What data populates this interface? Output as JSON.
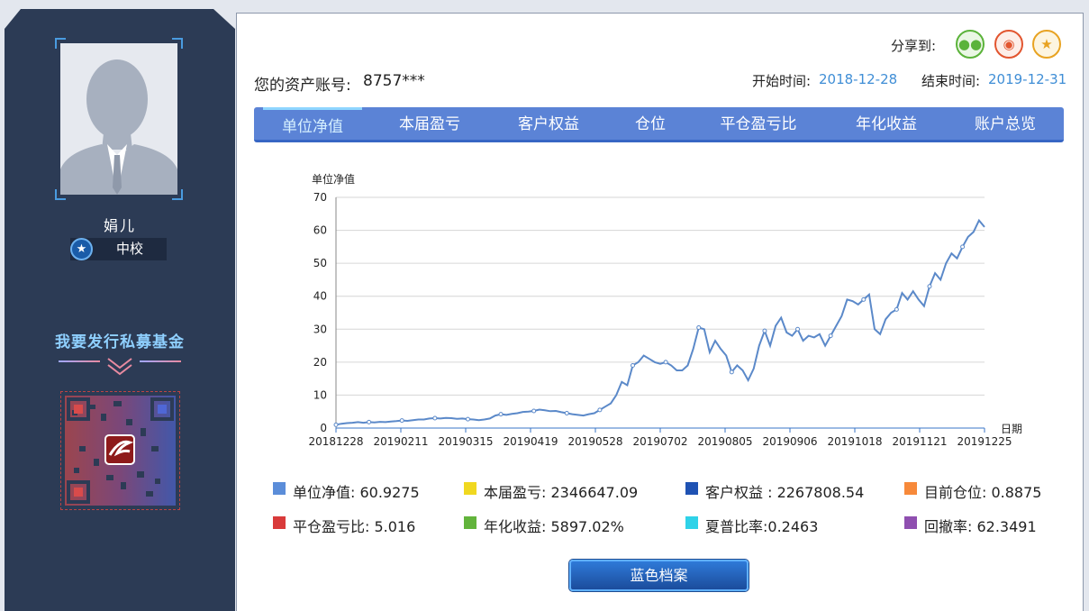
{
  "profile": {
    "name": "娟儿",
    "rank": "中校",
    "rank_icon": "star-icon"
  },
  "fund": {
    "title": "我要发行私募基金"
  },
  "account": {
    "label": "您的资产账号:",
    "value": "8757***"
  },
  "share": {
    "label": "分享到:",
    "buttons": [
      {
        "name": "wechat-icon",
        "color": "#5bb33a"
      },
      {
        "name": "weibo-icon",
        "color": "#e2552f"
      },
      {
        "name": "favorite-star-icon",
        "color": "#e8a322"
      }
    ]
  },
  "period": {
    "start_label": "开始时间:",
    "start_value": "2018-12-28",
    "end_label": "结束时间:",
    "end_value": "2019-12-31"
  },
  "tabs": [
    {
      "label": "单位净值",
      "active": true
    },
    {
      "label": "本届盈亏"
    },
    {
      "label": "客户权益"
    },
    {
      "label": "仓位"
    },
    {
      "label": "平仓盈亏比"
    },
    {
      "label": "年化收益"
    },
    {
      "label": "账户总览"
    }
  ],
  "chart_data": {
    "type": "line",
    "title": "",
    "ylabel": "单位净值",
    "xlabel": "日期",
    "ylim": [
      0,
      70
    ],
    "yticks": [
      0,
      10,
      20,
      30,
      40,
      50,
      60,
      70
    ],
    "xticks": [
      "20181228",
      "20190211",
      "20190315",
      "20190419",
      "20190528",
      "20190702",
      "20190805",
      "20190906",
      "20191018",
      "20191121",
      "20191225"
    ],
    "grid": true,
    "series": [
      {
        "color": "#5b89c9",
        "points": [
          [
            0,
            1.0
          ],
          [
            3,
            1.3
          ],
          [
            6,
            1.5
          ],
          [
            9,
            1.6
          ],
          [
            12,
            1.8
          ],
          [
            15,
            1.6
          ],
          [
            18,
            1.8
          ],
          [
            21,
            1.7
          ],
          [
            24,
            1.9
          ],
          [
            27,
            1.8
          ],
          [
            30,
            2.0
          ],
          [
            33,
            2.1
          ],
          [
            36,
            2.3
          ],
          [
            39,
            2.2
          ],
          [
            42,
            2.4
          ],
          [
            45,
            2.6
          ],
          [
            48,
            2.6
          ],
          [
            51,
            2.9
          ],
          [
            54,
            3.0
          ],
          [
            57,
            2.9
          ],
          [
            60,
            3.1
          ],
          [
            63,
            3.0
          ],
          [
            66,
            2.8
          ],
          [
            69,
            2.9
          ],
          [
            72,
            2.7
          ],
          [
            75,
            2.6
          ],
          [
            78,
            2.4
          ],
          [
            81,
            2.6
          ],
          [
            84,
            2.9
          ],
          [
            87,
            3.8
          ],
          [
            90,
            4.2
          ],
          [
            93,
            4.0
          ],
          [
            96,
            4.3
          ],
          [
            99,
            4.5
          ],
          [
            102,
            4.9
          ],
          [
            105,
            5.0
          ],
          [
            108,
            5.2
          ],
          [
            111,
            5.6
          ],
          [
            114,
            5.4
          ],
          [
            117,
            5.1
          ],
          [
            120,
            5.2
          ],
          [
            123,
            4.8
          ],
          [
            126,
            4.5
          ],
          [
            129,
            4.2
          ],
          [
            132,
            4.0
          ],
          [
            135,
            3.8
          ],
          [
            138,
            4.2
          ],
          [
            141,
            4.5
          ],
          [
            144,
            5.5
          ],
          [
            147,
            6.5
          ],
          [
            150,
            7.5
          ],
          [
            153,
            10
          ],
          [
            156,
            14
          ],
          [
            159,
            13
          ],
          [
            162,
            19
          ],
          [
            165,
            20
          ],
          [
            168,
            22
          ],
          [
            171,
            21
          ],
          [
            174,
            20
          ],
          [
            177,
            19.5
          ],
          [
            180,
            20
          ],
          [
            183,
            19
          ],
          [
            186,
            17.5
          ],
          [
            189,
            17.5
          ],
          [
            192,
            19
          ],
          [
            195,
            24
          ],
          [
            198,
            30.5
          ],
          [
            201,
            30
          ],
          [
            204,
            23
          ],
          [
            207,
            26.5
          ],
          [
            210,
            24
          ],
          [
            213,
            22
          ],
          [
            216,
            17
          ],
          [
            219,
            19
          ],
          [
            222,
            17.5
          ],
          [
            225,
            14.5
          ],
          [
            228,
            18
          ],
          [
            231,
            25
          ],
          [
            234,
            29.5
          ],
          [
            237,
            25
          ],
          [
            240,
            31
          ],
          [
            243,
            33.5
          ],
          [
            246,
            29
          ],
          [
            249,
            28
          ],
          [
            252,
            30
          ],
          [
            255,
            26.5
          ],
          [
            258,
            28
          ],
          [
            261,
            27.5
          ],
          [
            264,
            28.5
          ],
          [
            267,
            25
          ],
          [
            270,
            28
          ],
          [
            273,
            31
          ],
          [
            276,
            34
          ],
          [
            279,
            39
          ],
          [
            282,
            38.5
          ],
          [
            285,
            37.5
          ],
          [
            288,
            39
          ],
          [
            291,
            40.5
          ],
          [
            294,
            30
          ],
          [
            297,
            28.5
          ],
          [
            300,
            33
          ],
          [
            303,
            35
          ],
          [
            306,
            36
          ],
          [
            309,
            41
          ],
          [
            312,
            39
          ],
          [
            315,
            41.5
          ],
          [
            318,
            39
          ],
          [
            321,
            37
          ],
          [
            324,
            43
          ],
          [
            327,
            47
          ],
          [
            330,
            45
          ],
          [
            333,
            50
          ],
          [
            336,
            53
          ],
          [
            339,
            51.5
          ],
          [
            342,
            55
          ],
          [
            345,
            58
          ],
          [
            348,
            59.5
          ],
          [
            351,
            63
          ],
          [
            354,
            61
          ]
        ]
      }
    ]
  },
  "legend": [
    {
      "label": "单位净值: 60.9275",
      "color": "#5b8dd9"
    },
    {
      "label": "本届盈亏: 2346647.09",
      "color": "#f0d820"
    },
    {
      "label": "客户权益 : 2267808.54",
      "color": "#1f52b3"
    },
    {
      "label": "目前仓位: 0.8875",
      "color": "#f7893a"
    },
    {
      "label": "平仓盈亏比: 5.016",
      "color": "#d93a3a"
    },
    {
      "label": "年化收益: 5897.02%",
      "color": "#62b43c"
    },
    {
      "label": "夏普比率:0.2463",
      "color": "#2fd2e8"
    },
    {
      "label": "回撤率: 62.3491",
      "color": "#8f4fb0"
    }
  ],
  "archive_button": {
    "label": "蓝色档案"
  }
}
